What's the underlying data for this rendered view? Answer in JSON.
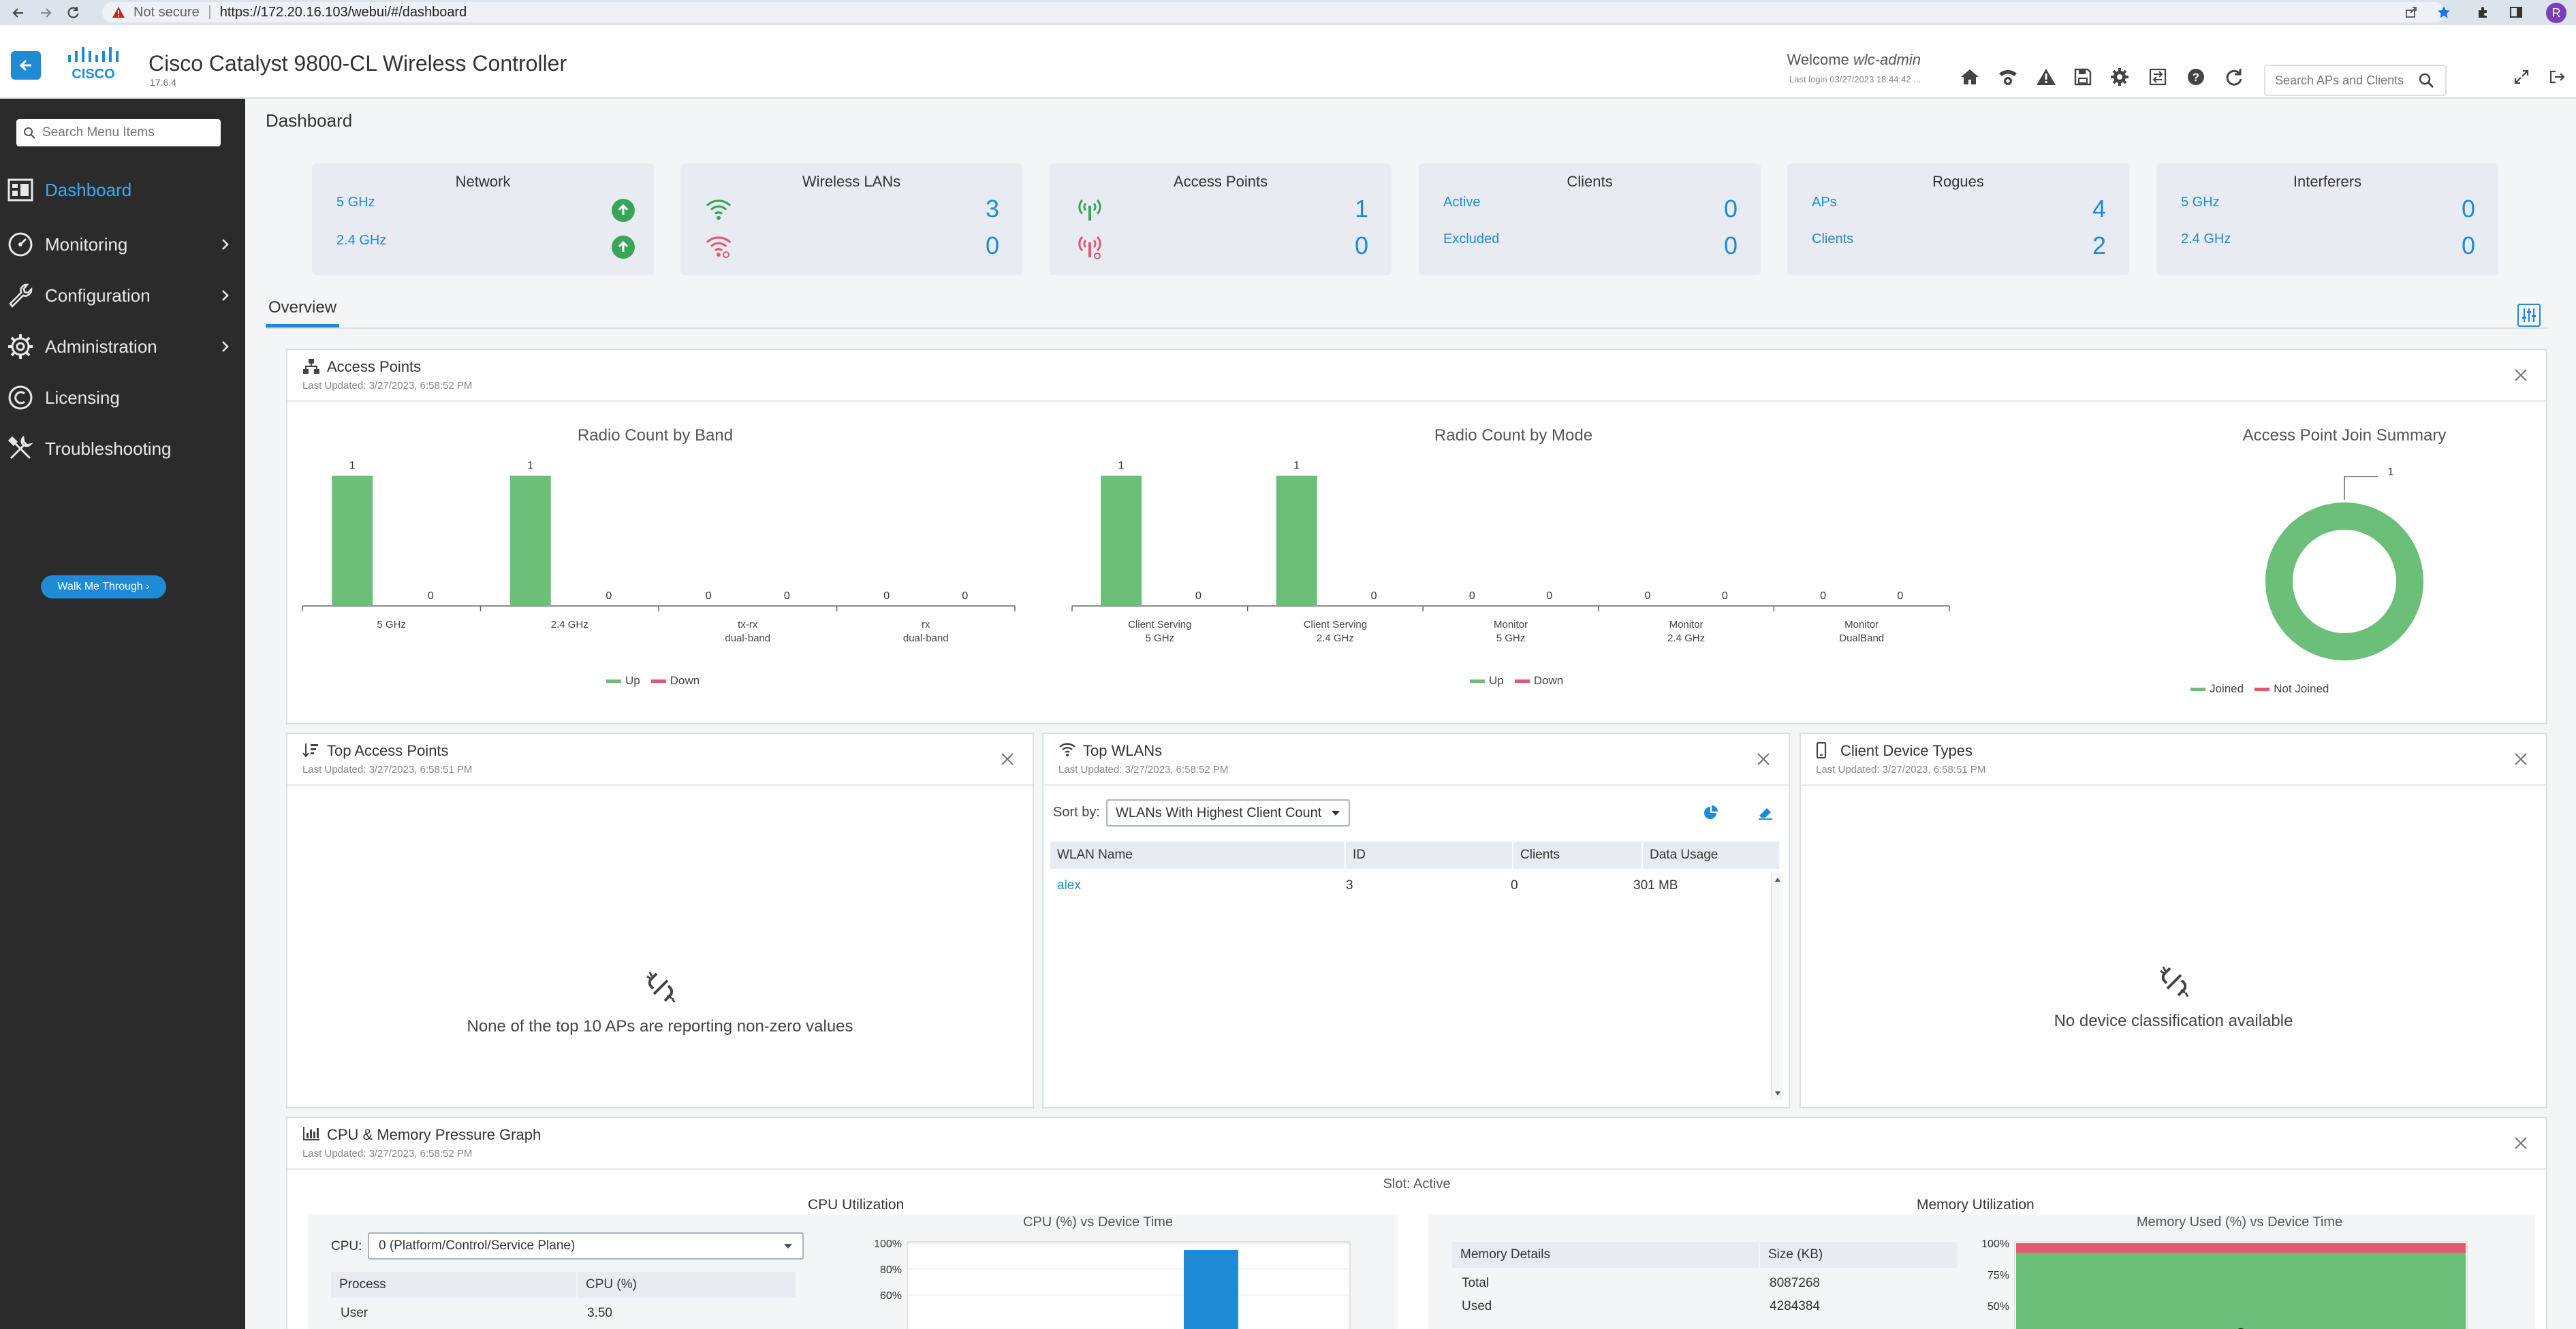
{
  "browser": {
    "security_label": "Not secure",
    "url": "https://172.20.16.103/webui/#/dashboard",
    "profile_initial": "R"
  },
  "header": {
    "product_title": "Cisco Catalyst 9800-CL Wireless Controller",
    "version": "17.6.4",
    "welcome_prefix": "Welcome",
    "username": "wlc-admin",
    "last_login": "Last login 03/27/2023 18:44:42 ...",
    "search_placeholder": "Search APs and Clients"
  },
  "sidebar": {
    "search_placeholder": "Search Menu Items",
    "items": [
      {
        "label": "Dashboard",
        "icon": "dashboard-icon",
        "active": true
      },
      {
        "label": "Monitoring",
        "icon": "monitoring-icon",
        "chevron": true
      },
      {
        "label": "Configuration",
        "icon": "wrench-icon",
        "chevron": true
      },
      {
        "label": "Administration",
        "icon": "gear-icon",
        "chevron": true
      },
      {
        "label": "Licensing",
        "icon": "licensing-icon"
      },
      {
        "label": "Troubleshooting",
        "icon": "tools-icon"
      }
    ],
    "walk_me_through": "Walk Me Through ›"
  },
  "page_title": "Dashboard",
  "tiles": {
    "network": {
      "title": "Network",
      "row1_label": "5 GHz",
      "row2_label": "2.4 GHz"
    },
    "wlans": {
      "title": "Wireless LANs",
      "row1_value": "3",
      "row2_value": "0"
    },
    "aps": {
      "title": "Access Points",
      "row1_value": "1",
      "row2_value": "0"
    },
    "clients": {
      "title": "Clients",
      "row1_label": "Active",
      "row1_value": "0",
      "row2_label": "Excluded",
      "row2_value": "0"
    },
    "rogues": {
      "title": "Rogues",
      "row1_label": "APs",
      "row1_value": "4",
      "row2_label": "Clients",
      "row2_value": "2"
    },
    "interferers": {
      "title": "Interferers",
      "row1_label": "5 GHz",
      "row1_value": "0",
      "row2_label": "2.4 GHz",
      "row2_value": "0"
    }
  },
  "tabs": {
    "overview": "Overview"
  },
  "ap_panel": {
    "title": "Access Points",
    "updated": "Last Updated: 3/27/2023, 6:58:52 PM",
    "legend_up": "Up",
    "legend_down": "Down",
    "legend_joined": "Joined",
    "legend_not_joined": "Not Joined"
  },
  "chart_data": [
    {
      "type": "bar",
      "title": "Radio Count by Band",
      "categories": [
        "5 GHz",
        "2.4 GHz",
        "tx-rx dual-band",
        "rx dual-band"
      ],
      "category_lines": [
        [
          "5 GHz"
        ],
        [
          "2.4 GHz"
        ],
        [
          "tx-rx",
          "dual-band"
        ],
        [
          "rx",
          "dual-band"
        ]
      ],
      "series": [
        {
          "name": "Up",
          "values": [
            1,
            1,
            0,
            0
          ]
        },
        {
          "name": "Down",
          "values": [
            0,
            0,
            0,
            0
          ]
        }
      ],
      "ylim": [
        0,
        1.15
      ],
      "legend": "bottom"
    },
    {
      "type": "bar",
      "title": "Radio Count by Mode",
      "categories": [
        "Client Serving 5 GHz",
        "Client Serving 2.4 GHz",
        "Monitor 5 GHz",
        "Monitor 2.4 GHz",
        "Monitor DualBand"
      ],
      "category_lines": [
        [
          "Client Serving",
          "5 GHz"
        ],
        [
          "Client Serving",
          "2.4 GHz"
        ],
        [
          "Monitor",
          "5 GHz"
        ],
        [
          "Monitor",
          "2.4 GHz"
        ],
        [
          "Monitor",
          "DualBand"
        ]
      ],
      "series": [
        {
          "name": "Up",
          "values": [
            1,
            1,
            0,
            0,
            0
          ]
        },
        {
          "name": "Down",
          "values": [
            0,
            0,
            0,
            0,
            0
          ]
        }
      ],
      "ylim": [
        0,
        1.15
      ],
      "legend": "bottom"
    },
    {
      "type": "pie",
      "title": "Access Point Join Summary",
      "categories": [
        "Joined",
        "Not Joined"
      ],
      "values": [
        1,
        0
      ],
      "legend": "bottom"
    },
    {
      "type": "bar",
      "title": "CPU (%) vs Device Time",
      "yticks": [
        "100%",
        "80%",
        "60%"
      ]
    },
    {
      "type": "area",
      "title": "Memory Used (%) vs Device Time",
      "yticks": [
        "100%",
        "75%",
        "50%"
      ]
    }
  ],
  "top_aps": {
    "title": "Top Access Points",
    "updated": "Last Updated: 3/27/2023, 6:58:51 PM",
    "empty": "None of the top 10 APs are reporting non-zero values"
  },
  "top_wlans": {
    "title": "Top WLANs",
    "updated": "Last Updated: 3/27/2023, 6:58:52 PM",
    "sort_label": "Sort by:",
    "sort_value": "WLANs With Highest Client Count",
    "columns": [
      "WLAN Name",
      "ID",
      "Clients",
      "Data Usage"
    ],
    "rows": [
      {
        "name": "alex",
        "id": "3",
        "clients": "0",
        "usage": "301 MB"
      }
    ]
  },
  "client_types": {
    "title": "Client Device Types",
    "updated": "Last Updated: 3/27/2023, 6:58:51 PM",
    "empty": "No device classification available"
  },
  "cpu_panel": {
    "title": "CPU & Memory Pressure Graph",
    "updated": "Last Updated: 3/27/2023, 6:58:52 PM",
    "slot": "Slot: Active",
    "cpu_util_title": "CPU Utilization",
    "cpu_label": "CPU:",
    "cpu_select": "0 (Platform/Control/Service Plane)",
    "cpu_columns": [
      "Process",
      "CPU (%)"
    ],
    "cpu_rows": [
      {
        "process": "User",
        "cpu": "3.50"
      }
    ],
    "mem_util_title": "Memory Utilization",
    "mem_columns": [
      "Memory Details",
      "Size (KB)"
    ],
    "mem_rows": [
      {
        "detail": "Total",
        "size": "8087268"
      },
      {
        "detail": "Used",
        "size": "4284384"
      }
    ]
  },
  "colors": {
    "accent": "#1f8ad6",
    "up": "#6cbf78",
    "down": "#e05a6e",
    "sidebar": "#2b2b2b"
  }
}
